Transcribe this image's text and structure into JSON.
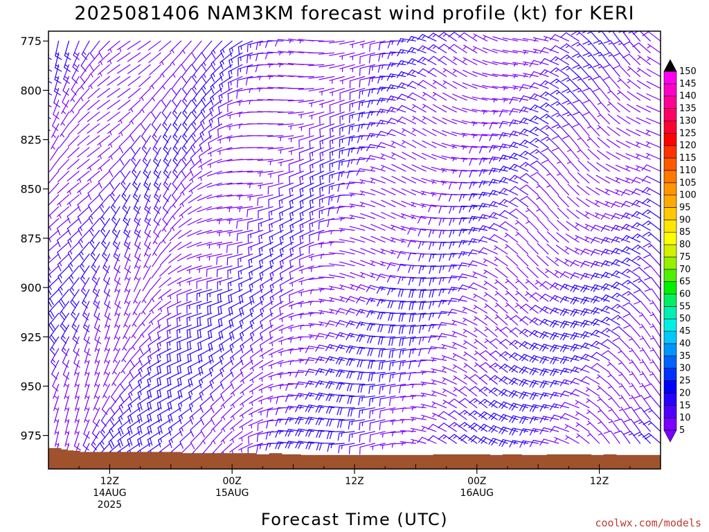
{
  "chart_data": {
    "type": "wind barb profile",
    "title": "2025081406 NAM3KM forecast wind profile (kt) for KERI",
    "xlabel": "Forecast Time (UTC)",
    "credit": "coolwx.com/models",
    "y_axis": {
      "label": "",
      "inverted": true,
      "range_hpa": [
        770,
        992
      ],
      "ticks": [
        775,
        800,
        825,
        850,
        875,
        900,
        925,
        950,
        975
      ]
    },
    "x_axis": {
      "range_hours_from_init": [
        0,
        60
      ],
      "ticks": [
        {
          "hour": 6,
          "l1": "12Z",
          "l2": "14AUG",
          "l3": "2025"
        },
        {
          "hour": 18,
          "l1": "00Z",
          "l2": "15AUG",
          "l3": ""
        },
        {
          "hour": 30,
          "l1": "12Z",
          "l2": "",
          "l3": ""
        },
        {
          "hour": 42,
          "l1": "00Z",
          "l2": "16AUG",
          "l3": ""
        },
        {
          "hour": 54,
          "l1": "12Z",
          "l2": "",
          "l3": ""
        }
      ]
    },
    "colorbar": {
      "unit": "kt",
      "levels": [
        5,
        10,
        15,
        20,
        25,
        30,
        35,
        40,
        45,
        50,
        55,
        60,
        65,
        70,
        75,
        80,
        85,
        90,
        95,
        100,
        105,
        110,
        115,
        120,
        125,
        130,
        135,
        140,
        145,
        150
      ],
      "colors": [
        "#7a00ff",
        "#5000ff",
        "#2800ff",
        "#0000ff",
        "#0032ff",
        "#0064ff",
        "#0096ff",
        "#00c8ff",
        "#00f0e6",
        "#00f0b4",
        "#00f064",
        "#00f000",
        "#50f000",
        "#96f000",
        "#d2f000",
        "#ffff00",
        "#ffe600",
        "#ffc800",
        "#ffaa00",
        "#ff9600",
        "#ff7800",
        "#ff5a00",
        "#ff3200",
        "#ff0000",
        "#ff0032",
        "#ff0064",
        "#ff0096",
        "#ff00c8",
        "#ff00f0",
        "#ff00ff"
      ]
    },
    "surface_pressure_hpa": [
      981.5,
      981.5,
      982.2,
      982.7,
      982.9,
      983.5,
      983.5,
      983.5,
      983.5,
      983.5,
      983.5,
      983.5,
      983.5,
      983.5,
      983.5,
      983.5,
      983.5,
      983.5,
      983.5,
      983.5,
      983.5,
      984.1,
      984.1,
      984.1,
      984.1,
      984.1,
      984.1,
      984.1,
      984.1,
      984.1,
      984.1,
      984.1,
      984.1,
      984.7,
      984.7,
      984.1,
      984.1,
      984.7,
      984.7,
      984.7,
      985.0,
      985.0,
      985.0,
      985.0,
      985.0,
      985.0,
      985.0,
      985.0,
      985.0,
      985.0,
      985.0,
      985.0,
      985.0,
      985.0,
      985.0,
      985.0,
      985.0,
      985.0,
      985.0,
      985.0,
      985.0,
      984.7,
      984.7,
      984.7,
      984.7,
      984.7,
      984.7,
      984.7,
      984.7,
      984.7,
      985.0,
      985.0,
      984.7,
      984.7,
      984.7,
      985.0,
      985.0,
      985.0,
      985.0,
      984.7,
      984.7,
      984.7,
      984.7,
      984.7,
      984.7,
      984.7,
      985.0,
      985.0,
      984.7,
      984.7,
      985.0,
      985.0,
      985.0,
      985.0,
      985.0,
      985.0,
      985.0
    ],
    "barb_times_hours": [
      0,
      1,
      2,
      3,
      4,
      5,
      6,
      7,
      8,
      9,
      10,
      11,
      12,
      13,
      14,
      15,
      16,
      17,
      18,
      19,
      20,
      21,
      22,
      23,
      24,
      25,
      26,
      27,
      28,
      29,
      30,
      31,
      32,
      33,
      34,
      35,
      36,
      37,
      38,
      39,
      40,
      41,
      42,
      43,
      44,
      45,
      46,
      47,
      48,
      49,
      50,
      51,
      52,
      53,
      54,
      55,
      56,
      57,
      58,
      59,
      60
    ],
    "barb_levels_hpa": [
      775,
      781,
      787,
      793,
      799,
      805,
      811,
      817,
      823,
      829,
      835,
      841,
      847,
      853,
      859,
      865,
      871,
      877,
      883,
      889,
      895,
      901,
      907,
      913,
      919,
      925,
      931,
      937,
      943,
      949,
      955,
      961,
      967,
      973,
      979,
      985
    ],
    "wind_dir_key": [
      [
        0,
        210
      ],
      [
        10,
        220
      ],
      [
        20,
        250
      ],
      [
        30,
        270
      ],
      [
        42,
        290
      ],
      [
        50,
        300
      ],
      [
        60,
        310
      ]
    ],
    "wind_speed_note_kt": "5-25"
  }
}
